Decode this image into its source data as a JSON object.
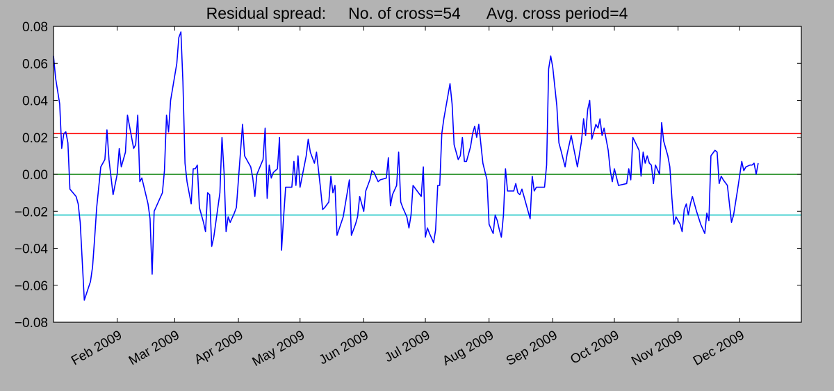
{
  "chart_data": {
    "type": "line",
    "title": "Residual spread:     No. of cross=54      Avg. cross period=4",
    "xlabel": "",
    "ylabel": "",
    "x_range": [
      "2009-01-01",
      "2009-12-31"
    ],
    "ylim": [
      -0.08,
      0.08
    ],
    "y_ticks": [
      -0.08,
      -0.06,
      -0.04,
      -0.02,
      0.0,
      0.02,
      0.04,
      0.06,
      0.08
    ],
    "y_tick_labels": [
      "−0.08",
      "−0.06",
      "−0.04",
      "−0.02",
      "0.00",
      "0.02",
      "0.04",
      "0.06",
      "0.08"
    ],
    "x_ticks": [
      {
        "date": "2009-02-01",
        "label": "Feb 2009"
      },
      {
        "date": "2009-03-01",
        "label": "Mar 2009"
      },
      {
        "date": "2009-04-01",
        "label": "Apr 2009"
      },
      {
        "date": "2009-05-01",
        "label": "May 2009"
      },
      {
        "date": "2009-06-01",
        "label": "Jun 2009"
      },
      {
        "date": "2009-07-01",
        "label": "Jul 2009"
      },
      {
        "date": "2009-08-01",
        "label": "Aug 2009"
      },
      {
        "date": "2009-09-01",
        "label": "Sep 2009"
      },
      {
        "date": "2009-10-01",
        "label": "Oct 2009"
      },
      {
        "date": "2009-11-01",
        "label": "Nov 2009"
      },
      {
        "date": "2009-12-01",
        "label": "Dec 2009"
      }
    ],
    "hlines": [
      {
        "y": 0.022,
        "color": "#ff0000"
      },
      {
        "y": 0.0,
        "color": "#007f00"
      },
      {
        "y": -0.022,
        "color": "#00bfbf"
      }
    ],
    "series": [
      {
        "color": "#0000ff",
        "points": [
          [
            "2009-01-01",
            0.064
          ],
          [
            "2009-01-02",
            0.052
          ],
          [
            "2009-01-04",
            0.038
          ],
          [
            "2009-01-05",
            0.014
          ],
          [
            "2009-01-06",
            0.022
          ],
          [
            "2009-01-07",
            0.023
          ],
          [
            "2009-01-08",
            0.017
          ],
          [
            "2009-01-09",
            -0.008
          ],
          [
            "2009-01-12",
            -0.012
          ],
          [
            "2009-01-13",
            -0.016
          ],
          [
            "2009-01-14",
            -0.026
          ],
          [
            "2009-01-16",
            -0.068
          ],
          [
            "2009-01-19",
            -0.058
          ],
          [
            "2009-01-20",
            -0.05
          ],
          [
            "2009-01-21",
            -0.035
          ],
          [
            "2009-01-22",
            -0.018
          ],
          [
            "2009-01-24",
            0.004
          ],
          [
            "2009-01-26",
            0.008
          ],
          [
            "2009-01-27",
            0.024
          ],
          [
            "2009-01-28",
            0.008
          ],
          [
            "2009-01-30",
            -0.011
          ],
          [
            "2009-02-01",
            0.0
          ],
          [
            "2009-02-02",
            0.014
          ],
          [
            "2009-02-03",
            0.004
          ],
          [
            "2009-02-05",
            0.012
          ],
          [
            "2009-02-06",
            0.032
          ],
          [
            "2009-02-07",
            0.026
          ],
          [
            "2009-02-09",
            0.014
          ],
          [
            "2009-02-10",
            0.016
          ],
          [
            "2009-02-11",
            0.032
          ],
          [
            "2009-02-12",
            -0.004
          ],
          [
            "2009-02-13",
            -0.002
          ],
          [
            "2009-02-16",
            -0.016
          ],
          [
            "2009-02-17",
            -0.024
          ],
          [
            "2009-02-18",
            -0.054
          ],
          [
            "2009-02-19",
            -0.02
          ],
          [
            "2009-02-23",
            -0.01
          ],
          [
            "2009-02-24",
            0.002
          ],
          [
            "2009-02-25",
            0.032
          ],
          [
            "2009-02-26",
            0.023
          ],
          [
            "2009-02-27",
            0.04
          ],
          [
            "2009-03-02",
            0.06
          ],
          [
            "2009-03-03",
            0.074
          ],
          [
            "2009-03-04",
            0.077
          ],
          [
            "2009-03-05",
            0.05
          ],
          [
            "2009-03-06",
            0.006
          ],
          [
            "2009-03-07",
            -0.004
          ],
          [
            "2009-03-09",
            -0.016
          ],
          [
            "2009-03-10",
            0.003
          ],
          [
            "2009-03-11",
            0.003
          ],
          [
            "2009-03-12",
            0.005
          ],
          [
            "2009-03-13",
            -0.018
          ],
          [
            "2009-03-15",
            -0.026
          ],
          [
            "2009-03-16",
            -0.031
          ],
          [
            "2009-03-17",
            -0.01
          ],
          [
            "2009-03-18",
            -0.011
          ],
          [
            "2009-03-19",
            -0.039
          ],
          [
            "2009-03-20",
            -0.034
          ],
          [
            "2009-03-23",
            -0.01
          ],
          [
            "2009-03-24",
            0.02
          ],
          [
            "2009-03-25",
            0.001
          ],
          [
            "2009-03-26",
            -0.031
          ],
          [
            "2009-03-27",
            -0.023
          ],
          [
            "2009-03-28",
            -0.026
          ],
          [
            "2009-03-30",
            -0.021
          ],
          [
            "2009-03-31",
            -0.018
          ],
          [
            "2009-04-02",
            0.012
          ],
          [
            "2009-04-03",
            0.027
          ],
          [
            "2009-04-04",
            0.01
          ],
          [
            "2009-04-06",
            0.006
          ],
          [
            "2009-04-07",
            0.004
          ],
          [
            "2009-04-08",
            -0.002
          ],
          [
            "2009-04-09",
            -0.012
          ],
          [
            "2009-04-10",
            0.0
          ],
          [
            "2009-04-13",
            0.008
          ],
          [
            "2009-04-14",
            0.025
          ],
          [
            "2009-04-15",
            -0.013
          ],
          [
            "2009-04-16",
            0.005
          ],
          [
            "2009-04-17",
            -0.002
          ],
          [
            "2009-04-18",
            0.001
          ],
          [
            "2009-04-20",
            0.003
          ],
          [
            "2009-04-21",
            0.02
          ],
          [
            "2009-04-22",
            -0.041
          ],
          [
            "2009-04-23",
            -0.023
          ],
          [
            "2009-04-24",
            -0.007
          ],
          [
            "2009-04-27",
            -0.007
          ],
          [
            "2009-04-28",
            0.007
          ],
          [
            "2009-04-29",
            -0.006
          ],
          [
            "2009-04-30",
            0.01
          ],
          [
            "2009-05-01",
            -0.007
          ],
          [
            "2009-05-04",
            0.01
          ],
          [
            "2009-05-05",
            0.019
          ],
          [
            "2009-05-06",
            0.012
          ],
          [
            "2009-05-08",
            0.006
          ],
          [
            "2009-05-09",
            0.012
          ],
          [
            "2009-05-11",
            -0.008
          ],
          [
            "2009-05-12",
            -0.019
          ],
          [
            "2009-05-13",
            -0.018
          ],
          [
            "2009-05-15",
            -0.015
          ],
          [
            "2009-05-16",
            -0.001
          ],
          [
            "2009-05-17",
            -0.01
          ],
          [
            "2009-05-18",
            -0.006
          ],
          [
            "2009-05-19",
            -0.033
          ],
          [
            "2009-05-22",
            -0.023
          ],
          [
            "2009-05-25",
            -0.003
          ],
          [
            "2009-05-26",
            -0.033
          ],
          [
            "2009-05-28",
            -0.027
          ],
          [
            "2009-05-29",
            -0.023
          ],
          [
            "2009-05-30",
            -0.012
          ],
          [
            "2009-06-01",
            -0.02
          ],
          [
            "2009-06-02",
            -0.009
          ],
          [
            "2009-06-04",
            -0.003
          ],
          [
            "2009-06-05",
            0.002
          ],
          [
            "2009-06-06",
            0.001
          ],
          [
            "2009-06-08",
            -0.004
          ],
          [
            "2009-06-09",
            -0.003
          ],
          [
            "2009-06-12",
            -0.002
          ],
          [
            "2009-06-13",
            0.009
          ],
          [
            "2009-06-14",
            -0.017
          ],
          [
            "2009-06-15",
            -0.011
          ],
          [
            "2009-06-17",
            -0.006
          ],
          [
            "2009-06-18",
            0.012
          ],
          [
            "2009-06-19",
            -0.015
          ],
          [
            "2009-06-20",
            -0.018
          ],
          [
            "2009-06-22",
            -0.023
          ],
          [
            "2009-06-23",
            -0.029
          ],
          [
            "2009-06-24",
            -0.022
          ],
          [
            "2009-06-25",
            -0.006
          ],
          [
            "2009-06-27",
            -0.009
          ],
          [
            "2009-06-29",
            -0.012
          ],
          [
            "2009-06-30",
            0.004
          ],
          [
            "2009-07-01",
            -0.034
          ],
          [
            "2009-07-02",
            -0.029
          ],
          [
            "2009-07-03",
            -0.032
          ],
          [
            "2009-07-05",
            -0.037
          ],
          [
            "2009-07-06",
            -0.03
          ],
          [
            "2009-07-07",
            -0.006
          ],
          [
            "2009-07-08",
            -0.006
          ],
          [
            "2009-07-09",
            0.022
          ],
          [
            "2009-07-10",
            0.03
          ],
          [
            "2009-07-13",
            0.049
          ],
          [
            "2009-07-14",
            0.038
          ],
          [
            "2009-07-15",
            0.016
          ],
          [
            "2009-07-17",
            0.008
          ],
          [
            "2009-07-18",
            0.01
          ],
          [
            "2009-07-19",
            0.02
          ],
          [
            "2009-07-20",
            0.007
          ],
          [
            "2009-07-21",
            0.007
          ],
          [
            "2009-07-23",
            0.015
          ],
          [
            "2009-07-24",
            0.022
          ],
          [
            "2009-07-25",
            0.026
          ],
          [
            "2009-07-26",
            0.02
          ],
          [
            "2009-07-27",
            0.027
          ],
          [
            "2009-07-29",
            0.006
          ],
          [
            "2009-07-31",
            -0.003
          ],
          [
            "2009-08-01",
            -0.027
          ],
          [
            "2009-08-03",
            -0.032
          ],
          [
            "2009-08-04",
            -0.022
          ],
          [
            "2009-08-05",
            -0.025
          ],
          [
            "2009-08-06",
            -0.03
          ],
          [
            "2009-08-07",
            -0.034
          ],
          [
            "2009-08-08",
            -0.022
          ],
          [
            "2009-08-09",
            0.003
          ],
          [
            "2009-08-10",
            -0.009
          ],
          [
            "2009-08-13",
            -0.009
          ],
          [
            "2009-08-14",
            -0.005
          ],
          [
            "2009-08-15",
            -0.01
          ],
          [
            "2009-08-16",
            -0.011
          ],
          [
            "2009-08-17",
            -0.008
          ],
          [
            "2009-08-19",
            -0.016
          ],
          [
            "2009-08-21",
            -0.024
          ],
          [
            "2009-08-22",
            -0.001
          ],
          [
            "2009-08-23",
            -0.009
          ],
          [
            "2009-08-24",
            -0.007
          ],
          [
            "2009-08-25",
            -0.007
          ],
          [
            "2009-08-28",
            -0.007
          ],
          [
            "2009-08-29",
            0.005
          ],
          [
            "2009-08-30",
            0.057
          ],
          [
            "2009-08-31",
            0.064
          ],
          [
            "2009-09-01",
            0.058
          ],
          [
            "2009-09-03",
            0.037
          ],
          [
            "2009-09-04",
            0.017
          ],
          [
            "2009-09-05",
            0.013
          ],
          [
            "2009-09-07",
            0.004
          ],
          [
            "2009-09-08",
            0.011
          ],
          [
            "2009-09-10",
            0.021
          ],
          [
            "2009-09-13",
            0.004
          ],
          [
            "2009-09-15",
            0.018
          ],
          [
            "2009-09-16",
            0.03
          ],
          [
            "2009-09-17",
            0.021
          ],
          [
            "2009-09-18",
            0.035
          ],
          [
            "2009-09-19",
            0.04
          ],
          [
            "2009-09-20",
            0.019
          ],
          [
            "2009-09-22",
            0.027
          ],
          [
            "2009-09-23",
            0.025
          ],
          [
            "2009-09-24",
            0.03
          ],
          [
            "2009-09-25",
            0.021
          ],
          [
            "2009-09-26",
            0.025
          ],
          [
            "2009-09-28",
            0.013
          ],
          [
            "2009-09-29",
            0.002
          ],
          [
            "2009-09-30",
            -0.004
          ],
          [
            "2009-10-01",
            0.003
          ],
          [
            "2009-10-03",
            -0.006
          ],
          [
            "2009-10-07",
            -0.005
          ],
          [
            "2009-10-08",
            0.003
          ],
          [
            "2009-10-09",
            -0.003
          ],
          [
            "2009-10-10",
            0.02
          ],
          [
            "2009-10-13",
            0.013
          ],
          [
            "2009-10-14",
            -0.001
          ],
          [
            "2009-10-15",
            0.012
          ],
          [
            "2009-10-16",
            0.006
          ],
          [
            "2009-10-17",
            0.01
          ],
          [
            "2009-10-18",
            0.006
          ],
          [
            "2009-10-19",
            0.005
          ],
          [
            "2009-10-20",
            -0.005
          ],
          [
            "2009-10-21",
            0.005
          ],
          [
            "2009-10-23",
            0.0
          ],
          [
            "2009-10-24",
            0.028
          ],
          [
            "2009-10-25",
            0.018
          ],
          [
            "2009-10-27",
            0.01
          ],
          [
            "2009-10-28",
            0.004
          ],
          [
            "2009-10-29",
            -0.013
          ],
          [
            "2009-10-30",
            -0.027
          ],
          [
            "2009-10-31",
            -0.023
          ],
          [
            "2009-11-02",
            -0.027
          ],
          [
            "2009-11-03",
            -0.031
          ],
          [
            "2009-11-04",
            -0.019
          ],
          [
            "2009-11-05",
            -0.016
          ],
          [
            "2009-11-06",
            -0.022
          ],
          [
            "2009-11-07",
            -0.016
          ],
          [
            "2009-11-08",
            -0.012
          ],
          [
            "2009-11-10",
            -0.02
          ],
          [
            "2009-11-12",
            -0.027
          ],
          [
            "2009-11-14",
            -0.032
          ],
          [
            "2009-11-15",
            -0.021
          ],
          [
            "2009-11-16",
            -0.025
          ],
          [
            "2009-11-17",
            0.01
          ],
          [
            "2009-11-19",
            0.013
          ],
          [
            "2009-11-20",
            0.012
          ],
          [
            "2009-11-21",
            -0.005
          ],
          [
            "2009-11-22",
            -0.001
          ],
          [
            "2009-11-23",
            -0.003
          ],
          [
            "2009-11-25",
            -0.006
          ],
          [
            "2009-11-27",
            -0.026
          ],
          [
            "2009-11-28",
            -0.022
          ],
          [
            "2009-11-30",
            -0.008
          ],
          [
            "2009-12-02",
            0.007
          ],
          [
            "2009-12-03",
            0.002
          ],
          [
            "2009-12-04",
            0.004
          ],
          [
            "2009-12-06",
            0.005
          ],
          [
            "2009-12-07",
            0.005
          ],
          [
            "2009-12-08",
            0.006
          ],
          [
            "2009-12-09",
            0.0
          ],
          [
            "2009-12-10",
            0.006
          ]
        ]
      }
    ],
    "grid": false,
    "legend": "none"
  }
}
